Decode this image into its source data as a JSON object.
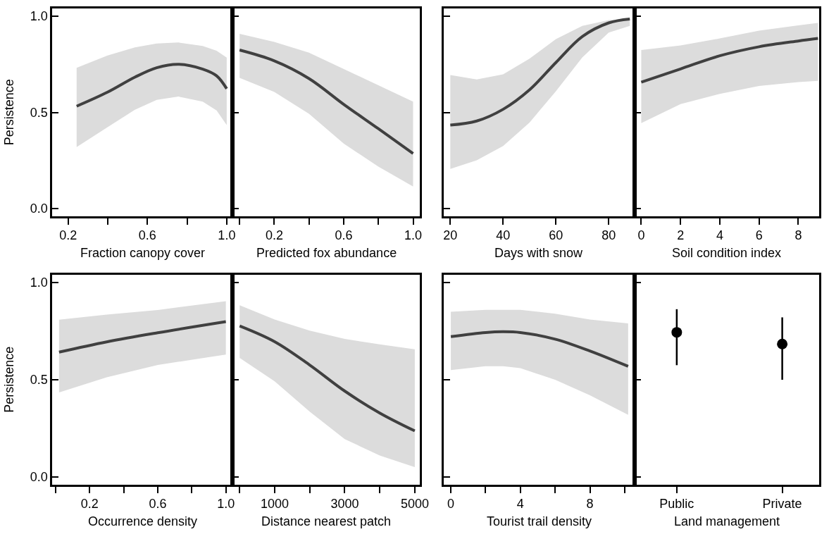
{
  "chart_data": [
    {
      "type": "line",
      "xlabel": "Fraction canopy cover",
      "ylabel": "Persistence",
      "xlim": [
        0.12,
        1.03
      ],
      "xticks": [
        0.2,
        {
          "value": 0.4,
          "label": null
        },
        0.6,
        {
          "value": 0.8,
          "label": null
        },
        {
          "value": 1.0,
          "label": "1.0"
        }
      ],
      "ylim": [
        -0.04,
        1.04
      ],
      "yticks": [
        {
          "value": 0,
          "label": "0.0"
        },
        {
          "value": 0.5,
          "label": "0.5"
        },
        {
          "value": 1,
          "label": "1.0"
        }
      ],
      "series": [
        {
          "color": "#404040",
          "x": [
            0.243,
            0.399,
            0.537,
            0.647,
            0.757,
            0.879,
            0.949,
            1.0
          ],
          "values": [
            0.532,
            0.605,
            0.683,
            0.732,
            0.75,
            0.725,
            0.69,
            0.623
          ],
          "upper": [
            0.732,
            0.796,
            0.838,
            0.858,
            0.863,
            0.845,
            0.82,
            0.785
          ],
          "lower": [
            0.32,
            0.423,
            0.514,
            0.565,
            0.582,
            0.556,
            0.51,
            0.434
          ]
        }
      ]
    },
    {
      "type": "line",
      "xlabel": "Predicted fox abundance",
      "xlim": [
        -0.04,
        1.04
      ],
      "xticks": [
        {
          "value": 0,
          "label": null
        },
        0.2,
        {
          "value": 0.4,
          "label": null
        },
        0.6,
        {
          "value": 0.8,
          "label": null
        },
        {
          "value": 1.0,
          "label": "1.0"
        }
      ],
      "ylim": [
        -0.04,
        1.04
      ],
      "yticks": [
        {
          "value": 0,
          "label": null
        },
        {
          "value": 0.5,
          "label": null
        },
        {
          "value": 1,
          "label": null
        }
      ],
      "tick_labels": "x",
      "series": [
        {
          "color": "#404040",
          "x": [
            0,
            0.2,
            0.4,
            0.6,
            0.8,
            1.0
          ],
          "values": [
            0.824,
            0.768,
            0.676,
            0.542,
            0.415,
            0.286
          ],
          "upper": [
            0.908,
            0.866,
            0.81,
            0.725,
            0.641,
            0.556
          ],
          "lower": [
            0.679,
            0.606,
            0.493,
            0.338,
            0.218,
            0.115
          ]
        }
      ]
    },
    {
      "type": "line",
      "xlabel": "Days with snow",
      "xlim": [
        17.5,
        89.8
      ],
      "xticks": [
        20,
        40,
        60,
        80
      ],
      "ylim": [
        -0.04,
        1.04
      ],
      "yticks": [
        {
          "value": 0,
          "label": null
        },
        {
          "value": 0.5,
          "label": null
        },
        {
          "value": 1,
          "label": null
        }
      ],
      "tick_labels": "x",
      "series": [
        {
          "color": "#404040",
          "x": [
            20,
            30,
            40,
            50,
            60,
            70,
            80,
            88
          ],
          "values": [
            0.434,
            0.455,
            0.516,
            0.617,
            0.759,
            0.894,
            0.965,
            0.985
          ],
          "upper": [
            0.694,
            0.671,
            0.698,
            0.779,
            0.881,
            0.949,
            0.98,
            0.986
          ],
          "lower": [
            0.206,
            0.251,
            0.325,
            0.447,
            0.61,
            0.786,
            0.915,
            0.949
          ]
        }
      ]
    },
    {
      "type": "line",
      "xlabel": "Soil condition index",
      "xlim": [
        -0.34,
        9.06
      ],
      "xticks": [
        0,
        2,
        4,
        6,
        8
      ],
      "ylim": [
        -0.04,
        1.04
      ],
      "yticks": [
        {
          "value": 0,
          "label": null
        },
        {
          "value": 0.5,
          "label": null
        },
        {
          "value": 1,
          "label": null
        }
      ],
      "tick_labels": "x",
      "series": [
        {
          "color": "#404040",
          "x": [
            0,
            2,
            4,
            6,
            8,
            9
          ],
          "values": [
            0.657,
            0.726,
            0.794,
            0.841,
            0.871,
            0.884
          ],
          "upper": [
            0.824,
            0.848,
            0.884,
            0.925,
            0.952,
            0.965
          ],
          "lower": [
            0.444,
            0.543,
            0.596,
            0.637,
            0.657,
            0.664
          ]
        }
      ]
    },
    {
      "type": "line",
      "xlabel": "Occurrence density",
      "ylabel": "Persistence",
      "xlim": [
        -0.02,
        1.04
      ],
      "xticks": [
        {
          "value": 0,
          "label": null
        },
        0.2,
        {
          "value": 0.4,
          "label": null
        },
        0.6,
        {
          "value": 0.8,
          "label": null
        },
        {
          "value": 1.0,
          "label": "1.0"
        }
      ],
      "ylim": [
        -0.04,
        1.04
      ],
      "yticks": [
        {
          "value": 0,
          "label": "0.0"
        },
        {
          "value": 0.5,
          "label": "0.5"
        },
        {
          "value": 1,
          "label": "1.0"
        }
      ],
      "series": [
        {
          "color": "#404040",
          "x": [
            0.02,
            0.3,
            0.6,
            1.0
          ],
          "values": [
            0.642,
            0.695,
            0.742,
            0.799
          ],
          "upper": [
            0.809,
            0.835,
            0.859,
            0.904
          ],
          "lower": [
            0.435,
            0.513,
            0.576,
            0.63
          ]
        }
      ]
    },
    {
      "type": "line",
      "xlabel": "Distance nearest patch",
      "xlim": [
        -200,
        5150
      ],
      "xticks": [
        {
          "value": 0,
          "label": null
        },
        1000,
        {
          "value": 2000,
          "label": null
        },
        3000,
        {
          "value": 4000,
          "label": null
        },
        5000
      ],
      "ylim": [
        -0.04,
        1.04
      ],
      "yticks": [
        {
          "value": 0,
          "label": null
        },
        {
          "value": 0.5,
          "label": null
        },
        {
          "value": 1,
          "label": null
        }
      ],
      "tick_labels": "x",
      "series": [
        {
          "color": "#404040",
          "x": [
            0,
            1000,
            2000,
            3000,
            4000,
            5000
          ],
          "values": [
            0.777,
            0.696,
            0.576,
            0.442,
            0.329,
            0.237
          ],
          "upper": [
            0.883,
            0.81,
            0.753,
            0.71,
            0.682,
            0.657
          ],
          "lower": [
            0.612,
            0.492,
            0.336,
            0.195,
            0.11,
            0.051
          ]
        }
      ]
    },
    {
      "type": "line",
      "xlabel": "Tourist trail density",
      "xlim": [
        -0.41,
        10.57
      ],
      "xticks": [
        0,
        {
          "value": 2,
          "label": null
        },
        4,
        {
          "value": 6,
          "label": null
        },
        8,
        {
          "value": 10,
          "label": null
        }
      ],
      "ylim": [
        -0.04,
        1.04
      ],
      "yticks": [
        {
          "value": 0,
          "label": null
        },
        {
          "value": 0.5,
          "label": null
        },
        {
          "value": 1,
          "label": null
        }
      ],
      "tick_labels": "x",
      "series": [
        {
          "color": "#404040",
          "x": [
            0,
            2,
            3,
            4,
            6,
            8,
            10.2
          ],
          "values": [
            0.722,
            0.743,
            0.747,
            0.743,
            0.709,
            0.648,
            0.569
          ],
          "upper": [
            0.85,
            0.86,
            0.86,
            0.86,
            0.84,
            0.81,
            0.79
          ],
          "lower": [
            0.55,
            0.57,
            0.57,
            0.56,
            0.5,
            0.42,
            0.32
          ]
        }
      ]
    },
    {
      "type": "scatter",
      "xlabel": "Land management",
      "categories": [
        "Public",
        "Private"
      ],
      "ylim": [
        -0.04,
        1.04
      ],
      "yticks": [
        {
          "value": 0,
          "label": null
        },
        {
          "value": 0.5,
          "label": null
        },
        {
          "value": 1,
          "label": null
        }
      ],
      "tick_labels": "x",
      "marker": "circle",
      "series": [
        {
          "color": "#000000",
          "values": [
            0.744,
            0.684
          ],
          "errors": [
            [
              0.575,
              0.863
            ],
            [
              0.5,
              0.821
            ]
          ]
        }
      ]
    }
  ]
}
